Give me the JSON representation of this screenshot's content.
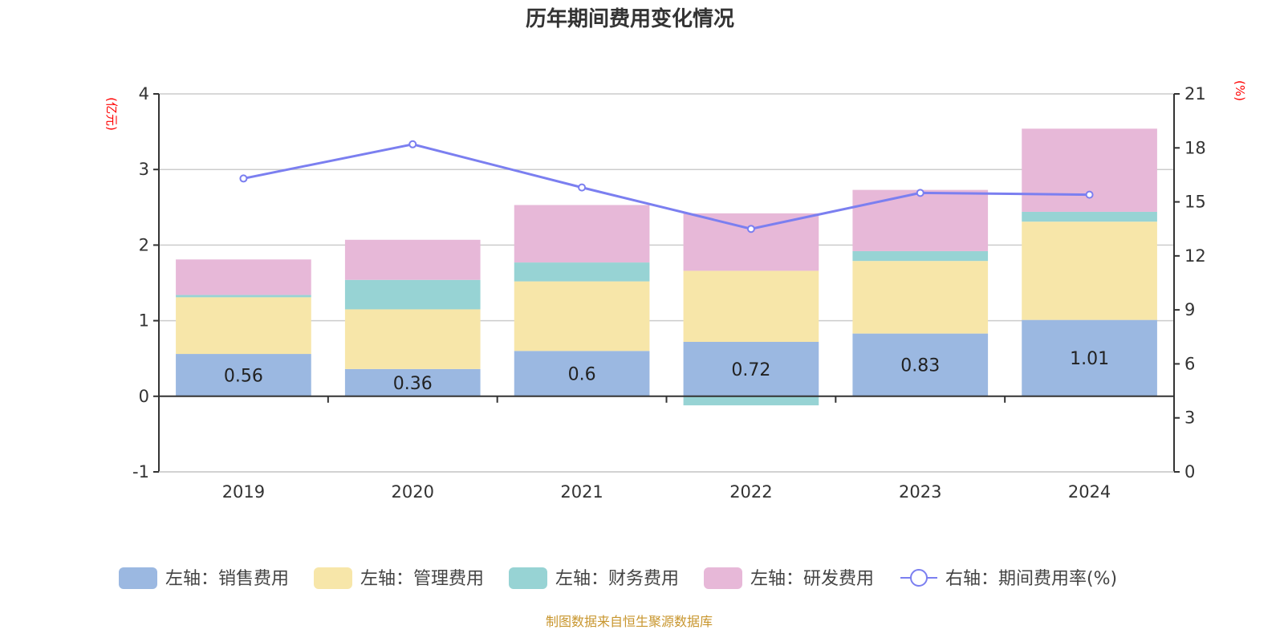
{
  "chart_data": {
    "type": "bar",
    "title": "历年期间费用变化情况",
    "categories": [
      "2019",
      "2020",
      "2021",
      "2022",
      "2023",
      "2024"
    ],
    "stacked": true,
    "left_axis": {
      "label": "(亿元)",
      "ylim": [
        -1,
        4
      ],
      "ticks": [
        "-1",
        "0",
        "1",
        "2",
        "3",
        "4"
      ],
      "tick_values": [
        -1,
        0,
        1,
        2,
        3,
        4
      ]
    },
    "right_axis": {
      "label": "(%)",
      "ylim": [
        0,
        21
      ],
      "ticks": [
        "0",
        "3",
        "6",
        "9",
        "12",
        "15",
        "18",
        "21"
      ],
      "tick_values": [
        0,
        3,
        6,
        9,
        12,
        15,
        18,
        21
      ]
    },
    "grid": true,
    "series": [
      {
        "name": "左轴：销售费用",
        "type": "bar",
        "axis": "left",
        "color": "#9bb8e1",
        "values": [
          0.56,
          0.36,
          0.6,
          0.72,
          0.83,
          1.01
        ],
        "data_labels": [
          "0.56",
          "0.36",
          "0.6",
          "0.72",
          "0.83",
          "1.01"
        ]
      },
      {
        "name": "左轴：管理费用",
        "type": "bar",
        "axis": "left",
        "color": "#f7e6a9",
        "values": [
          0.75,
          0.79,
          0.92,
          0.94,
          0.96,
          1.3
        ]
      },
      {
        "name": "左轴：财务费用",
        "type": "bar",
        "axis": "left",
        "color": "#97d3d4",
        "values": [
          0.03,
          0.39,
          0.25,
          -0.12,
          0.13,
          0.13
        ]
      },
      {
        "name": "左轴：研发费用",
        "type": "bar",
        "axis": "left",
        "color": "#e7b8d8",
        "values": [
          0.47,
          0.53,
          0.76,
          0.76,
          0.81,
          1.1
        ]
      },
      {
        "name": "右轴：期间费用率(%)",
        "type": "line",
        "axis": "right",
        "color": "#7b7ff0",
        "values": [
          16.3,
          18.2,
          15.8,
          13.5,
          15.5,
          15.4
        ]
      }
    ],
    "legend_position": "bottom",
    "source_note": "制图数据来自恒生聚源数据库"
  }
}
